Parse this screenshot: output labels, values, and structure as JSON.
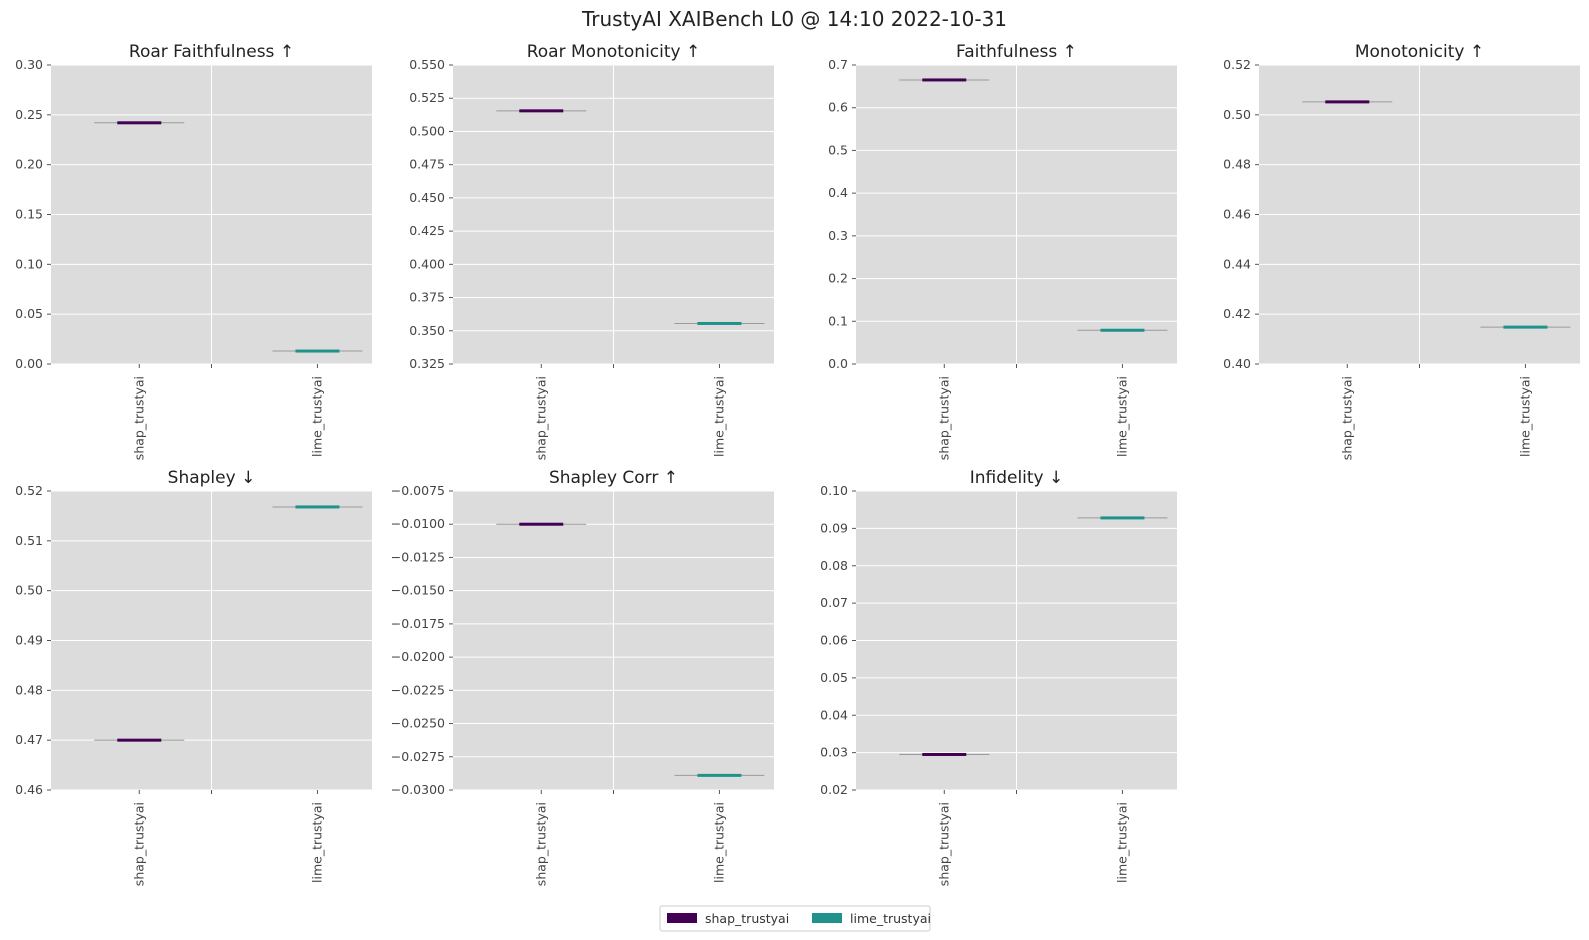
{
  "suptitle": "TrustyAI XAIBench L0 @ 14:10 2022-10-31",
  "colors": {
    "shap_trustyai": "#440154",
    "lime_trustyai": "#21918c",
    "axes_bg": "#dcdcdc",
    "grid": "#ffffff"
  },
  "legend": {
    "entries": [
      "shap_trustyai",
      "lime_trustyai"
    ]
  },
  "chart_data": [
    {
      "type": "box",
      "title": "Roar Faithfulness ↑",
      "categories": [
        "shap_trustyai",
        "lime_trustyai"
      ],
      "values": [
        0.242,
        0.013
      ],
      "ylim": [
        0,
        0.3
      ],
      "yticks": [
        0,
        0.05,
        0.1,
        0.15,
        0.2,
        0.25,
        0.3
      ],
      "ytick_labels": [
        "0.00",
        "0.05",
        "0.10",
        "0.15",
        "0.20",
        "0.25",
        "0.30"
      ]
    },
    {
      "type": "box",
      "title": "Roar Monotonicity ↑",
      "categories": [
        "shap_trustyai",
        "lime_trustyai"
      ],
      "values": [
        0.5155,
        0.3555
      ],
      "ylim": [
        0.325,
        0.55
      ],
      "yticks": [
        0.325,
        0.35,
        0.375,
        0.4,
        0.425,
        0.45,
        0.475,
        0.5,
        0.525,
        0.55
      ],
      "ytick_labels": [
        "0.325",
        "0.350",
        "0.375",
        "0.400",
        "0.425",
        "0.450",
        "0.475",
        "0.500",
        "0.525",
        "0.550"
      ]
    },
    {
      "type": "box",
      "title": "Faithfulness ↑",
      "categories": [
        "shap_trustyai",
        "lime_trustyai"
      ],
      "values": [
        0.665,
        0.079
      ],
      "ylim": [
        0,
        0.7
      ],
      "yticks": [
        0,
        0.1,
        0.2,
        0.3,
        0.4,
        0.5,
        0.6,
        0.7
      ],
      "ytick_labels": [
        "0.0",
        "0.1",
        "0.2",
        "0.3",
        "0.4",
        "0.5",
        "0.6",
        "0.7"
      ]
    },
    {
      "type": "box",
      "title": "Monotonicity ↑",
      "categories": [
        "shap_trustyai",
        "lime_trustyai"
      ],
      "values": [
        0.5052,
        0.4148
      ],
      "ylim": [
        0.4,
        0.52
      ],
      "yticks": [
        0.4,
        0.42,
        0.44,
        0.46,
        0.48,
        0.5,
        0.52
      ],
      "ytick_labels": [
        "0.40",
        "0.42",
        "0.44",
        "0.46",
        "0.48",
        "0.50",
        "0.52"
      ]
    },
    {
      "type": "box",
      "title": "Shapley ↓",
      "categories": [
        "shap_trustyai",
        "lime_trustyai"
      ],
      "values": [
        0.47,
        0.5168
      ],
      "ylim": [
        0.46,
        0.52
      ],
      "yticks": [
        0.46,
        0.47,
        0.48,
        0.49,
        0.5,
        0.51,
        0.52
      ],
      "ytick_labels": [
        "0.46",
        "0.47",
        "0.48",
        "0.49",
        "0.50",
        "0.51",
        "0.52"
      ]
    },
    {
      "type": "box",
      "title": "Shapley Corr ↑",
      "categories": [
        "shap_trustyai",
        "lime_trustyai"
      ],
      "values": [
        -0.01,
        -0.0289
      ],
      "ylim": [
        -0.03,
        -0.0075
      ],
      "yticks": [
        -0.03,
        -0.0275,
        -0.025,
        -0.0225,
        -0.02,
        -0.0175,
        -0.015,
        -0.0125,
        -0.01,
        -0.0075
      ],
      "ytick_labels": [
        "−0.0300",
        "−0.0275",
        "−0.0250",
        "−0.0225",
        "−0.0200",
        "−0.0175",
        "−0.0150",
        "−0.0125",
        "−0.0100",
        "−0.0075"
      ]
    },
    {
      "type": "box",
      "title": "Infidelity ↓",
      "categories": [
        "shap_trustyai",
        "lime_trustyai"
      ],
      "values": [
        0.0295,
        0.0928
      ],
      "ylim": [
        0.02,
        0.1
      ],
      "yticks": [
        0.02,
        0.03,
        0.04,
        0.05,
        0.06,
        0.07,
        0.08,
        0.09,
        0.1
      ],
      "ytick_labels": [
        "0.02",
        "0.03",
        "0.04",
        "0.05",
        "0.06",
        "0.07",
        "0.08",
        "0.09",
        "0.10"
      ]
    }
  ]
}
